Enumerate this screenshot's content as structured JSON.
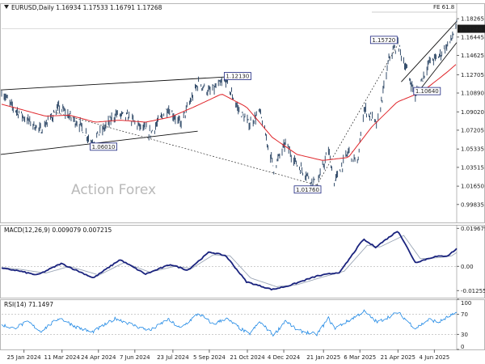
{
  "chart_data": [
    {
      "type": "candlestick",
      "title": "EURUSD,Daily  1.16934 1.17533 1.16791 1.17268",
      "watermark": "Action Forex",
      "ylim": [
        0.9805,
        1.198
      ],
      "y_ticks": [
        "1.18265",
        "1.16445",
        "1.14625",
        "1.12705",
        "1.10890",
        "1.09020",
        "1.07205",
        "1.05335",
        "1.03515",
        "1.01650",
        "0.99835"
      ],
      "y_tick_values": [
        1.18265,
        1.16445,
        1.14625,
        1.12705,
        1.1089,
        1.0902,
        1.07205,
        1.05335,
        1.03515,
        1.0165,
        0.99835
      ],
      "last_price": "1.17268",
      "last_price_value": 1.17268,
      "corner_label": "FE 61.8",
      "annotations": [
        {
          "text": "1.12130",
          "date": "2024-09-25",
          "value": 1.1213
        },
        {
          "text": "1.06010",
          "date": "2024-04-16",
          "value": 1.0601
        },
        {
          "text": "1.01760",
          "date": "2025-01-13",
          "value": 1.0176
        },
        {
          "text": "1.15720",
          "date": "2025-04-21",
          "value": 1.1572
        },
        {
          "text": "1.10640",
          "date": "2025-05-12",
          "value": 1.1064
        }
      ],
      "series": [
        {
          "name": "Price",
          "color": "#1f3b5c",
          "anchors": [
            [
              "2023-12-28",
              1.112
            ],
            [
              "2024-01-10",
              1.096
            ],
            [
              "2024-01-25",
              1.085
            ],
            [
              "2024-02-14",
              1.072
            ],
            [
              "2024-03-08",
              1.095
            ],
            [
              "2024-03-20",
              1.086
            ],
            [
              "2024-04-02",
              1.077
            ],
            [
              "2024-04-16",
              1.0601
            ],
            [
              "2024-05-03",
              1.076
            ],
            [
              "2024-05-15",
              1.088
            ],
            [
              "2024-05-31",
              1.085
            ],
            [
              "2024-06-12",
              1.076
            ],
            [
              "2024-06-26",
              1.069
            ],
            [
              "2024-07-17",
              1.094
            ],
            [
              "2024-08-01",
              1.078
            ],
            [
              "2024-08-23",
              1.119
            ],
            [
              "2024-09-05",
              1.11
            ],
            [
              "2024-09-25",
              1.1213
            ],
            [
              "2024-10-10",
              1.093
            ],
            [
              "2024-10-23",
              1.078
            ],
            [
              "2024-11-05",
              1.09
            ],
            [
              "2024-11-22",
              1.034
            ],
            [
              "2024-12-06",
              1.059
            ],
            [
              "2024-12-20",
              1.038
            ],
            [
              "2025-01-13",
              1.0176
            ],
            [
              "2025-01-27",
              1.052
            ],
            [
              "2025-02-03",
              1.02
            ],
            [
              "2025-02-21",
              1.052
            ],
            [
              "2025-03-03",
              1.038
            ],
            [
              "2025-03-11",
              1.094
            ],
            [
              "2025-03-27",
              1.077
            ],
            [
              "2025-04-11",
              1.146
            ],
            [
              "2025-04-21",
              1.1572
            ],
            [
              "2025-05-12",
              1.1064
            ],
            [
              "2025-05-29",
              1.14
            ],
            [
              "2025-06-09",
              1.145
            ],
            [
              "2025-06-24",
              1.161
            ],
            [
              "2025-07-01",
              1.1768
            ]
          ]
        },
        {
          "name": "MA",
          "color": "#e0262b",
          "anchors": [
            [
              "2023-12-28",
              1.098
            ],
            [
              "2024-01-20",
              1.093
            ],
            [
              "2024-02-20",
              1.086
            ],
            [
              "2024-03-20",
              1.087
            ],
            [
              "2024-04-20",
              1.08
            ],
            [
              "2024-05-20",
              1.082
            ],
            [
              "2024-06-20",
              1.08
            ],
            [
              "2024-07-20",
              1.085
            ],
            [
              "2024-08-20",
              1.096
            ],
            [
              "2024-09-20",
              1.108
            ],
            [
              "2024-10-20",
              1.095
            ],
            [
              "2024-11-20",
              1.065
            ],
            [
              "2024-12-20",
              1.048
            ],
            [
              "2025-01-20",
              1.042
            ],
            [
              "2025-02-20",
              1.045
            ],
            [
              "2025-03-20",
              1.075
            ],
            [
              "2025-04-20",
              1.1
            ],
            [
              "2025-05-20",
              1.11
            ],
            [
              "2025-06-20",
              1.13
            ],
            [
              "2025-07-01",
              1.138
            ]
          ]
        }
      ],
      "trendlines": [
        {
          "from": [
            "2023-12-28",
            1.112
          ],
          "to": [
            "2024-10-25",
            1.1263
          ],
          "style": "solid"
        },
        {
          "from": [
            "2023-12-28",
            1.048
          ],
          "to": [
            "2024-08-22",
            1.071
          ],
          "style": "solid"
        },
        {
          "from": [
            "2024-03-01",
            1.09
          ],
          "to": [
            "2025-01-13",
            1.0176
          ],
          "style": "dashed"
        },
        {
          "from": [
            "2025-01-13",
            1.0176
          ],
          "to": [
            "2025-04-21",
            1.1572
          ],
          "style": "dashed"
        },
        {
          "from": [
            "2025-05-12",
            1.1064
          ],
          "to": [
            "2025-07-01",
            1.159
          ],
          "style": "solid"
        },
        {
          "from": [
            "2025-04-25",
            1.12
          ],
          "to": [
            "2025-07-01",
            1.18
          ],
          "style": "solid"
        }
      ],
      "x_tick_labels": [
        {
          "label": "25 Jan 2024",
          "date": "2024-01-25"
        },
        {
          "label": "11 Mar 2024",
          "date": "2024-03-11"
        },
        {
          "label": "24 Apr 2024",
          "date": "2024-04-24"
        },
        {
          "label": "7 Jun 2024",
          "date": "2024-06-07"
        },
        {
          "label": "23 Jul 2024",
          "date": "2024-07-23"
        },
        {
          "label": "5 Sep 2024",
          "date": "2024-09-05"
        },
        {
          "label": "21 Oct 2024",
          "date": "2024-10-21"
        },
        {
          "label": "4 Dec 2024",
          "date": "2024-12-04"
        },
        {
          "label": "21 Jan 2025",
          "date": "2025-01-21"
        },
        {
          "label": "6 Mar 2025",
          "date": "2025-03-06"
        },
        {
          "label": "21 Apr 2025",
          "date": "2025-04-21"
        },
        {
          "label": "4 Jun 2025",
          "date": "2025-06-04"
        }
      ]
    },
    {
      "type": "line",
      "title": "MACD(12,26,9) 0.009079 0.007215",
      "ylim": [
        -0.0162,
        0.0215
      ],
      "y_ticks": [
        "0.019679",
        "0.00",
        "-0.012552"
      ],
      "y_tick_values": [
        0.019679,
        0,
        -0.012552
      ],
      "series": [
        {
          "name": "MACD",
          "color": "#1a237e",
          "anchors": [
            [
              "2023-12-28",
              -0.001
            ],
            [
              "2024-01-15",
              -0.002
            ],
            [
              "2024-02-10",
              -0.0045
            ],
            [
              "2024-03-10",
              0.0015
            ],
            [
              "2024-04-18",
              -0.006
            ],
            [
              "2024-05-20",
              0.0035
            ],
            [
              "2024-06-20",
              -0.004
            ],
            [
              "2024-07-20",
              0.001
            ],
            [
              "2024-08-10",
              -0.002
            ],
            [
              "2024-09-05",
              0.0075
            ],
            [
              "2024-09-25",
              0.0055
            ],
            [
              "2024-10-20",
              -0.008
            ],
            [
              "2024-11-20",
              -0.012
            ],
            [
              "2024-12-10",
              -0.01
            ],
            [
              "2025-01-13",
              -0.005
            ],
            [
              "2025-02-10",
              -0.003
            ],
            [
              "2025-03-10",
              0.014
            ],
            [
              "2025-03-25",
              0.01
            ],
            [
              "2025-04-21",
              0.0185
            ],
            [
              "2025-05-12",
              0.002
            ],
            [
              "2025-06-04",
              0.005
            ],
            [
              "2025-06-20",
              0.0055
            ],
            [
              "2025-07-01",
              0.0091
            ]
          ]
        },
        {
          "name": "Signal",
          "color": "#9aa5b5",
          "anchors": [
            [
              "2023-12-28",
              -0.0005
            ],
            [
              "2024-01-20",
              -0.0015
            ],
            [
              "2024-02-20",
              -0.0035
            ],
            [
              "2024-03-20",
              0.0
            ],
            [
              "2024-04-25",
              -0.0045
            ],
            [
              "2024-05-25",
              0.002
            ],
            [
              "2024-06-25",
              -0.003
            ],
            [
              "2024-07-25",
              0.0
            ],
            [
              "2024-08-15",
              -0.001
            ],
            [
              "2024-09-10",
              0.006
            ],
            [
              "2024-09-30",
              0.0055
            ],
            [
              "2024-10-25",
              -0.006
            ],
            [
              "2024-11-25",
              -0.0105
            ],
            [
              "2024-12-20",
              -0.0095
            ],
            [
              "2025-01-20",
              -0.0055
            ],
            [
              "2025-02-15",
              -0.0025
            ],
            [
              "2025-03-15",
              0.011
            ],
            [
              "2025-03-30",
              0.01
            ],
            [
              "2025-04-28",
              0.016
            ],
            [
              "2025-05-18",
              0.004
            ],
            [
              "2025-06-10",
              0.0045
            ],
            [
              "2025-06-25",
              0.0055
            ],
            [
              "2025-07-01",
              0.0072
            ]
          ]
        }
      ]
    },
    {
      "type": "line",
      "title": "RSI(14) 71.1497",
      "ylim": [
        0,
        100
      ],
      "y_ticks": [
        "100",
        "70",
        "30",
        "0"
      ],
      "y_tick_values": [
        100,
        70,
        30,
        0
      ],
      "reference_lines": [
        70,
        30
      ],
      "series": [
        {
          "name": "RSI",
          "color": "#1e88e5",
          "anchors": [
            [
              "2023-12-28",
              50
            ],
            [
              "2024-01-12",
              42
            ],
            [
              "2024-01-30",
              55
            ],
            [
              "2024-02-14",
              36
            ],
            [
              "2024-03-08",
              63
            ],
            [
              "2024-03-28",
              45
            ],
            [
              "2024-04-16",
              34
            ],
            [
              "2024-05-15",
              62
            ],
            [
              "2024-06-12",
              44
            ],
            [
              "2024-06-26",
              38
            ],
            [
              "2024-07-17",
              60
            ],
            [
              "2024-08-01",
              42
            ],
            [
              "2024-08-23",
              72
            ],
            [
              "2024-09-10",
              50
            ],
            [
              "2024-09-25",
              62
            ],
            [
              "2024-10-23",
              30
            ],
            [
              "2024-11-05",
              55
            ],
            [
              "2024-11-22",
              28
            ],
            [
              "2024-12-06",
              58
            ],
            [
              "2024-12-20",
              38
            ],
            [
              "2025-01-13",
              30
            ],
            [
              "2025-01-27",
              62
            ],
            [
              "2025-02-03",
              42
            ],
            [
              "2025-02-21",
              58
            ],
            [
              "2025-03-11",
              76
            ],
            [
              "2025-03-27",
              54
            ],
            [
              "2025-04-21",
              74
            ],
            [
              "2025-05-12",
              42
            ],
            [
              "2025-05-29",
              60
            ],
            [
              "2025-06-09",
              54
            ],
            [
              "2025-06-24",
              68
            ],
            [
              "2025-07-01",
              71
            ]
          ]
        }
      ]
    }
  ]
}
